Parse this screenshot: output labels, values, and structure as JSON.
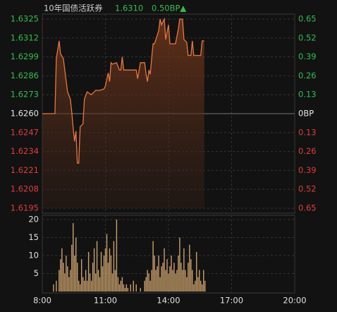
{
  "header": {
    "title": "10年国债活跃券",
    "price": "1.6310",
    "change": "0.50BP▲"
  },
  "chart_data": [
    {
      "type": "line",
      "color": "#e8783c",
      "up_color": "#2fbf4f",
      "down_color": "#e23b3b",
      "x": [
        480,
        516,
        520,
        528,
        532,
        540,
        552,
        560,
        564,
        568,
        572,
        576,
        580,
        584,
        588,
        596,
        600,
        608,
        620,
        632,
        644,
        656,
        660,
        668,
        672,
        676,
        680,
        692,
        700,
        704,
        708,
        712,
        748,
        752,
        760,
        772,
        776,
        780,
        784,
        788,
        792,
        796,
        800,
        804,
        812,
        816,
        820,
        828,
        832,
        840,
        844,
        860,
        868,
        872,
        880,
        884,
        892,
        896,
        904,
        908,
        912,
        932,
        936,
        942
      ],
      "values": [
        1.626,
        1.626,
        1.6298,
        1.631,
        1.6301,
        1.6298,
        1.6275,
        1.627,
        1.6261,
        1.625,
        1.6241,
        1.6248,
        1.6226,
        1.6226,
        1.6251,
        1.6253,
        1.627,
        1.6275,
        1.6273,
        1.6276,
        1.6276,
        1.6277,
        1.6279,
        1.6288,
        1.6282,
        1.6295,
        1.6294,
        1.6295,
        1.629,
        1.629,
        1.6299,
        1.629,
        1.629,
        1.6284,
        1.6295,
        1.6295,
        1.6287,
        1.6282,
        1.629,
        1.6287,
        1.6298,
        1.6308,
        1.6308,
        1.6311,
        1.6317,
        1.6325,
        1.6321,
        1.6325,
        1.6311,
        1.6321,
        1.6308,
        1.6308,
        1.6318,
        1.6325,
        1.6325,
        1.6311,
        1.6309,
        1.63,
        1.63,
        1.631,
        1.63,
        1.63,
        1.631,
        1.631
      ],
      "ylim": [
        1.6195,
        1.6325
      ],
      "yticks": [
        1.6325,
        1.6312,
        1.6299,
        1.6286,
        1.6273,
        {
          "value": 1.626,
          "label": "1.6260"
        },
        1.6247,
        1.6234,
        1.6221,
        1.6208,
        1.6195
      ],
      "y2lim": [
        -0.65,
        0.65
      ],
      "y2ticks": [
        0.65,
        0.52,
        0.39,
        0.26,
        0.13,
        {
          "value": 0,
          "label": "0BP"
        },
        {
          "value": -0.13,
          "label": "0.13"
        },
        {
          "value": -0.26,
          "label": "0.26"
        },
        {
          "value": -0.39,
          "label": "0.39"
        },
        {
          "value": -0.52,
          "label": "0.52"
        },
        {
          "value": -0.65,
          "label": "0.65"
        }
      ],
      "grid": true
    },
    {
      "type": "bar",
      "color": "#c9a06c",
      "x": [
        512,
        520,
        528,
        532,
        536,
        540,
        544,
        548,
        552,
        556,
        560,
        564,
        568,
        572,
        576,
        580,
        584,
        588,
        592,
        596,
        600,
        604,
        608,
        612,
        616,
        620,
        624,
        628,
        632,
        636,
        640,
        644,
        648,
        652,
        656,
        660,
        664,
        668,
        672,
        676,
        680,
        684,
        688,
        692,
        696,
        700,
        704,
        708,
        712,
        716,
        720,
        724,
        732,
        740,
        748,
        760,
        772,
        776,
        780,
        784,
        788,
        792,
        796,
        800,
        804,
        808,
        812,
        816,
        820,
        824,
        828,
        832,
        836,
        840,
        844,
        848,
        852,
        856,
        860,
        864,
        868,
        872,
        876,
        880,
        884,
        888,
        892,
        896,
        900,
        904,
        908,
        912,
        916,
        920,
        924,
        928,
        932,
        936,
        940,
        944
      ],
      "values": [
        2,
        3,
        6,
        9,
        12,
        8,
        5,
        10,
        7,
        4,
        6,
        13,
        19,
        10,
        15,
        8,
        3,
        2,
        9,
        4,
        3,
        6,
        3,
        11,
        5,
        3,
        8,
        12,
        5,
        14,
        6,
        4,
        11,
        7,
        10,
        12,
        16,
        8,
        12,
        10,
        5,
        14,
        6,
        20,
        4,
        2,
        3,
        4,
        2,
        1,
        2,
        1,
        2,
        3,
        2,
        1,
        3,
        4,
        6,
        5,
        3,
        6,
        14,
        10,
        6,
        7,
        10,
        4,
        7,
        8,
        12,
        6,
        9,
        5,
        7,
        10,
        6,
        8,
        5,
        6,
        10,
        15,
        8,
        6,
        12,
        6,
        4,
        8,
        13,
        9,
        6,
        2,
        3,
        11,
        4,
        6,
        3,
        2,
        6,
        3
      ],
      "ylim": [
        0,
        20
      ],
      "yticks": [
        20,
        15,
        10,
        5
      ],
      "xlim": [
        480,
        1200
      ],
      "xticks": [
        {
          "value": 480,
          "label": "8:00"
        },
        {
          "value": 660,
          "label": "11:00"
        },
        {
          "value": 840,
          "label": "14:00"
        },
        {
          "value": 1020,
          "label": "17:00"
        },
        {
          "value": 1200,
          "label": "20:00"
        }
      ],
      "grid": true
    }
  ]
}
